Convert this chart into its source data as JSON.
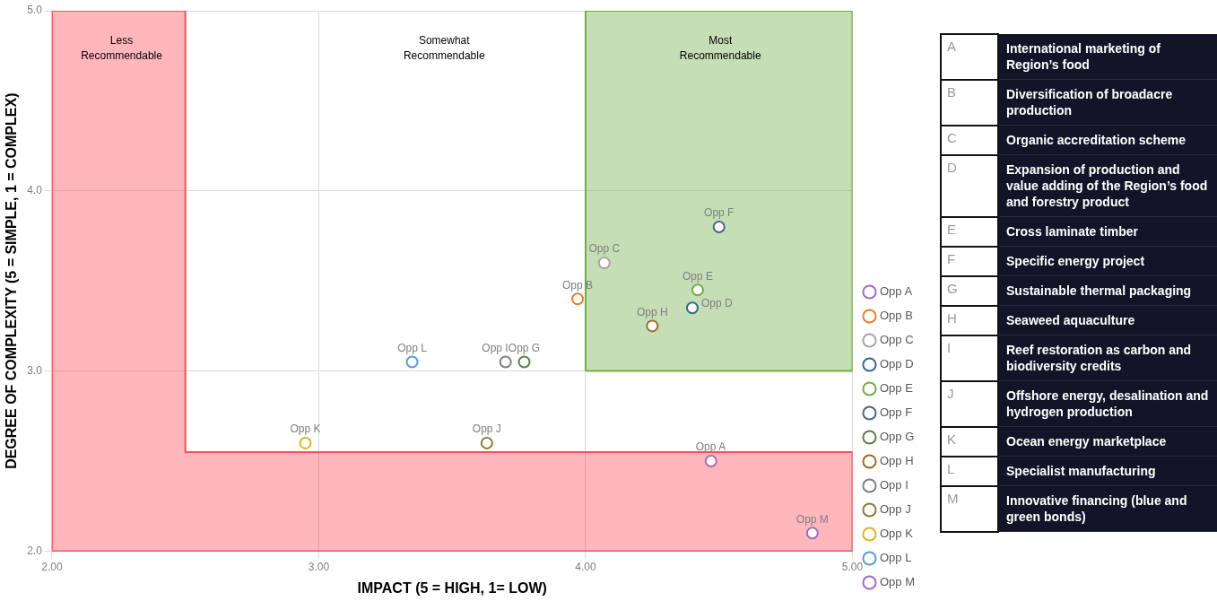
{
  "chart_data": [
    {
      "type": "scatter",
      "xlabel": "IMPACT (5 = HIGH, 1= LOW)",
      "ylabel": "DEGREE OF COMPLEXITY (5 = SIMPLE, 1 = COMPLEX)",
      "xlim": [
        2,
        5
      ],
      "ylim": [
        2,
        5
      ],
      "xticks": [
        {
          "value": 2,
          "label": "2.00"
        },
        {
          "value": 3,
          "label": "3.00"
        },
        {
          "value": 4,
          "label": "4.00"
        },
        {
          "value": 5,
          "label": "5.00"
        }
      ],
      "yticks": [
        {
          "value": 2,
          "label": "2.0"
        },
        {
          "value": 3,
          "label": "3.0"
        },
        {
          "value": 4,
          "label": "4.0"
        },
        {
          "value": 5,
          "label": "5.0"
        }
      ],
      "grid": true,
      "legend": "right",
      "marker": "circle",
      "series": [
        {
          "type": "area",
          "marker": "none",
          "color": "#ff4c57",
          "x": [
            2,
            2.5,
            2.5,
            5
          ],
          "values": [
            5,
            5,
            2.55,
            2.55
          ]
        },
        {
          "type": "area",
          "marker": "none",
          "color": "#70ad47",
          "x": [
            4,
            4,
            5,
            5,
            4
          ],
          "values": [
            3,
            5,
            5,
            3,
            3
          ]
        },
        {
          "name": "Opp A",
          "color": "#a569bd",
          "x": [
            4.47
          ],
          "values": [
            2.5
          ]
        },
        {
          "name": "Opp B",
          "color": "#ed7d31",
          "x": [
            3.97
          ],
          "values": [
            3.4
          ]
        },
        {
          "name": "Opp C",
          "color": "#a5a5a5",
          "x": [
            4.07
          ],
          "values": [
            3.6
          ]
        },
        {
          "name": "Opp D",
          "color": "#2e6b8a",
          "x": [
            4.4
          ],
          "values": [
            3.35
          ]
        },
        {
          "name": "Opp E",
          "color": "#70ad47",
          "x": [
            4.42
          ],
          "values": [
            3.45
          ]
        },
        {
          "name": "Opp F",
          "color": "#4a6584",
          "x": [
            4.5
          ],
          "values": [
            3.8
          ]
        },
        {
          "name": "Opp G",
          "color": "#5b7f4a",
          "x": [
            3.77
          ],
          "values": [
            3.05
          ]
        },
        {
          "name": "Opp H",
          "color": "#9e6b2e",
          "x": [
            4.25
          ],
          "values": [
            3.25
          ]
        },
        {
          "name": "Opp I",
          "color": "#7f7f7f",
          "x": [
            3.7
          ],
          "values": [
            3.05
          ]
        },
        {
          "name": "Opp J",
          "color": "#8c7a3a",
          "x": [
            3.63
          ],
          "values": [
            2.6
          ]
        },
        {
          "name": "Opp K",
          "color": "#ddb52a",
          "x": [
            2.95
          ],
          "values": [
            2.6
          ]
        },
        {
          "name": "Opp L",
          "color": "#5b9bd5",
          "x": [
            3.35
          ],
          "values": [
            3.05
          ]
        },
        {
          "name": "Opp M",
          "color": "#a569bd",
          "x": [
            4.85
          ],
          "values": [
            2.1
          ]
        }
      ],
      "annotations": [
        "Less Recommendable",
        "Somewhat Recommendable",
        "Most Recommendable"
      ]
    },
    {
      "type": "other",
      "categories": [
        "A",
        "B",
        "C",
        "D",
        "E",
        "F",
        "G",
        "H",
        "I",
        "J",
        "K",
        "L",
        "M"
      ],
      "annotations": [
        "International marketing of Region’s food",
        "Diversification of broadacre production",
        "Organic accreditation scheme",
        "Expansion of production and value adding of the Region’s food and forestry product",
        "Cross laminate timber",
        "Specific energy project",
        "Sustainable thermal packaging",
        "Seaweed aquaculture",
        "Reef restoration as carbon and biodiversity credits",
        "Offshore energy, desalination and hydrogen production",
        "Ocean energy marketplace",
        "Specialist manufacturing",
        "Innovative financing (blue and green bonds)"
      ]
    }
  ]
}
